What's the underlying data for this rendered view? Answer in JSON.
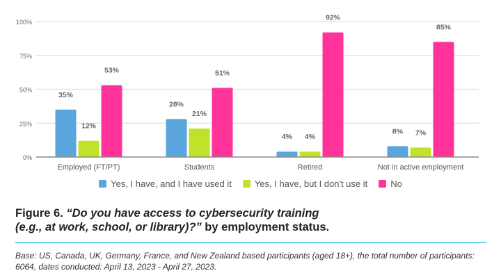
{
  "chart_data": {
    "type": "bar",
    "title": "",
    "xlabel": "",
    "ylabel": "",
    "ylim": [
      0,
      100
    ],
    "yticks": [
      "0%",
      "25%",
      "50%",
      "75%",
      "100%"
    ],
    "ytick_values": [
      0,
      25,
      50,
      75,
      100
    ],
    "grid": true,
    "legend_position": "bottom",
    "categories": [
      "Employed (FT/PT)",
      "Students",
      "Retired",
      "Not in active employment"
    ],
    "series": [
      {
        "name": "Yes, I have, and I have used it",
        "color": "#5aa6dc",
        "values": [
          35,
          28,
          4,
          8
        ]
      },
      {
        "name": "Yes, I have, but I don't use it",
        "color": "#c0e22a",
        "values": [
          12,
          21,
          4,
          7
        ]
      },
      {
        "name": "No",
        "color": "#ff3399",
        "values": [
          53,
          51,
          92,
          85
        ]
      }
    ],
    "data_label_suffix": "%"
  },
  "figure": {
    "label": "Figure 6.",
    "question_line1": "“Do you have access to cybersecurity training",
    "question_line2": "(e.g., at work, school, or library)?”",
    "suffix": " by employment status."
  },
  "base_note": "Base: US, Canada, UK, Germany, France, and New Zealand based participants (aged 18+), the total number of participants: 6064, dates conducted: April 13, 2023 - April 27, 2023."
}
